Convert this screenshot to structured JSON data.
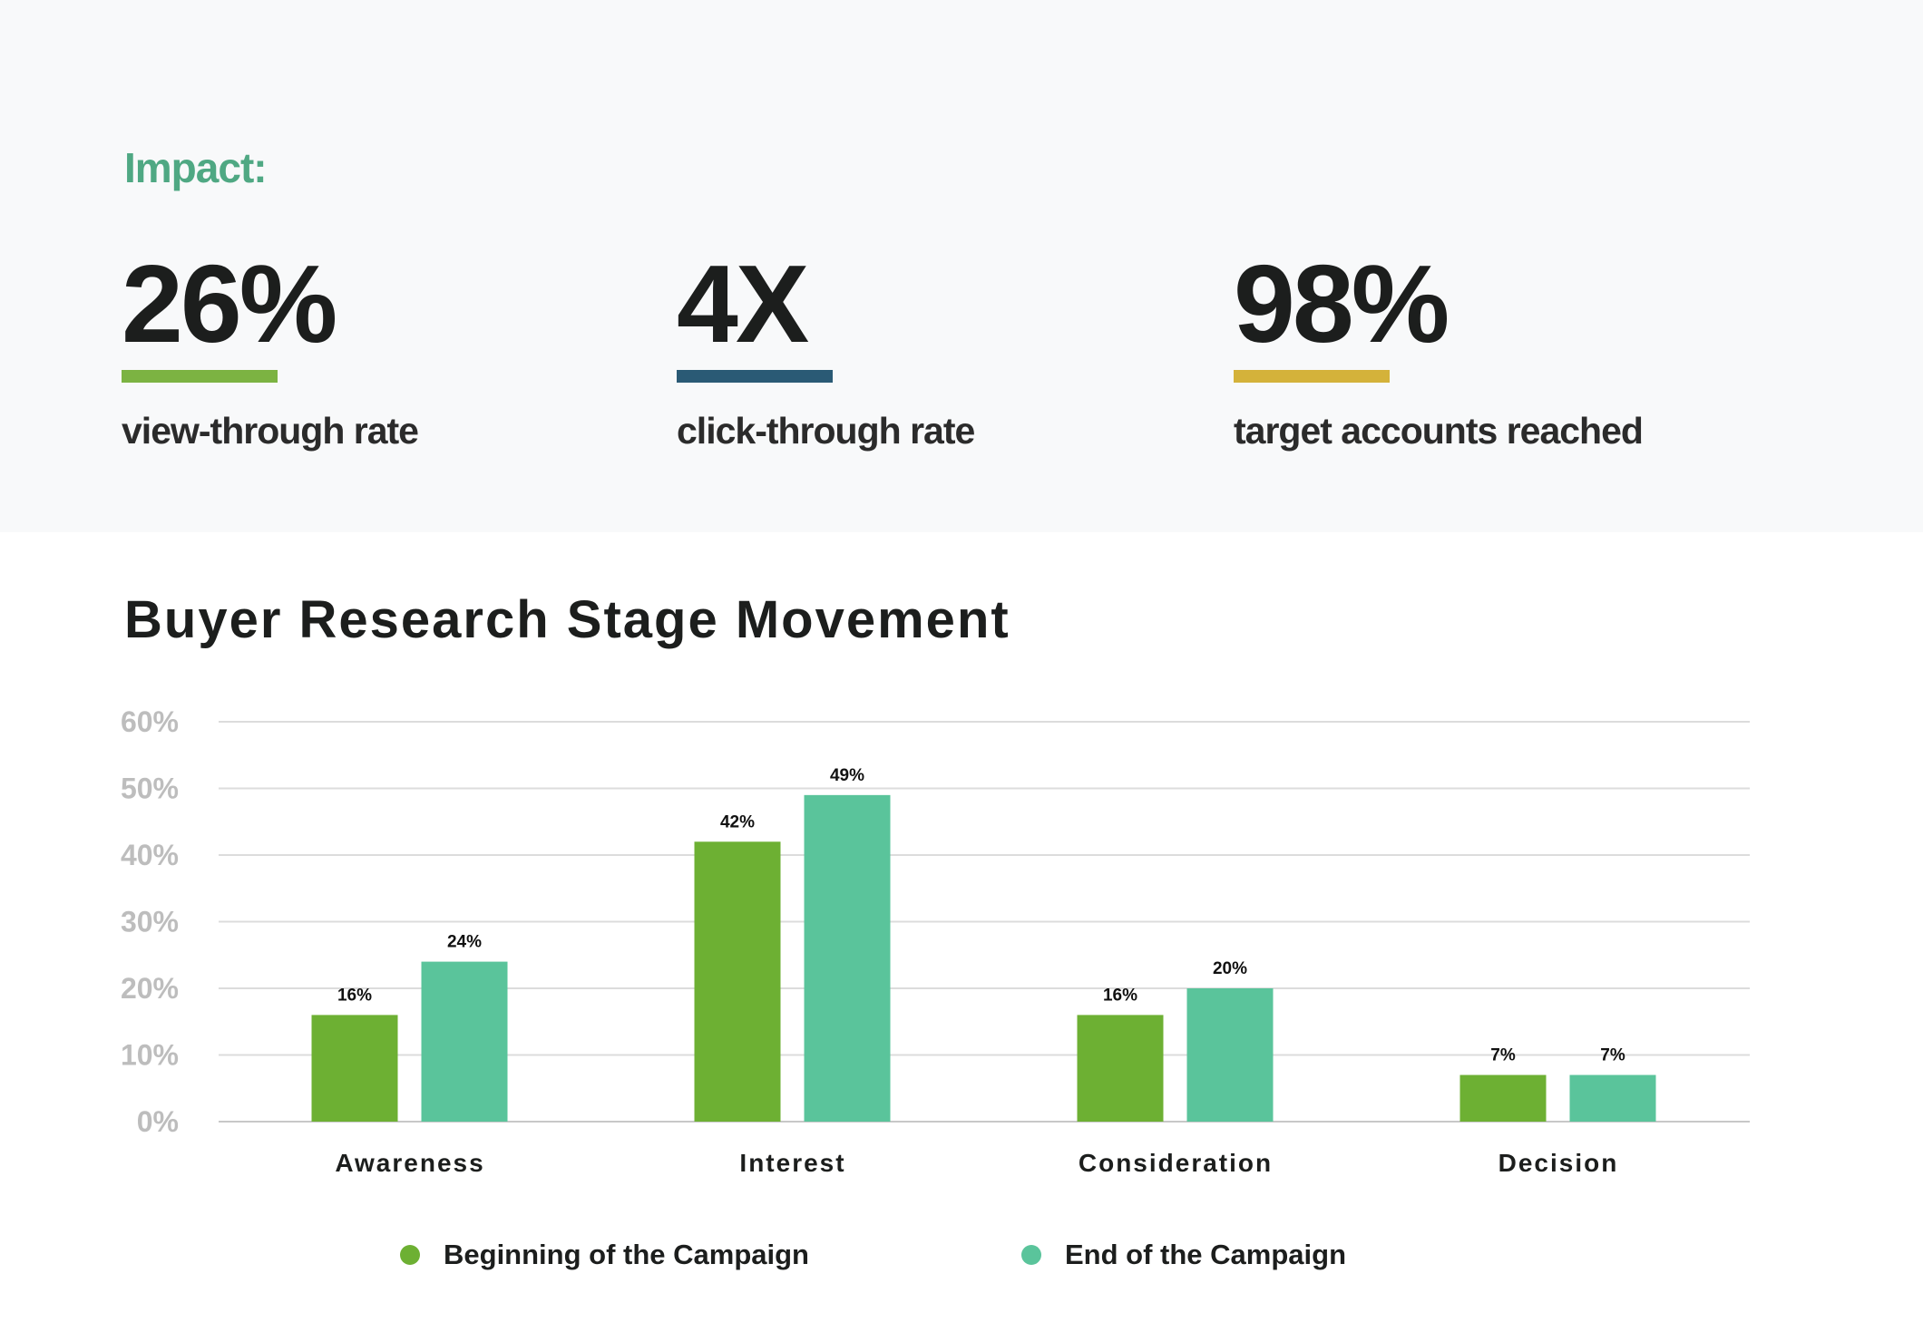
{
  "impact": {
    "heading": "Impact:",
    "stats": [
      {
        "value": "26%",
        "label": "view-through rate",
        "color": "#7cb342"
      },
      {
        "value": "4X",
        "label": "click-through rate",
        "color": "#2a5a75"
      },
      {
        "value": "98%",
        "label": "target accounts reached",
        "color": "#d4b23a"
      }
    ]
  },
  "chart_data": {
    "type": "bar",
    "title": "Buyer Research Stage Movement",
    "categories": [
      "Awareness",
      "Interest",
      "Consideration",
      "Decision"
    ],
    "series": [
      {
        "name": "Beginning of the Campaign",
        "values": [
          16,
          42,
          16,
          7
        ],
        "labels": [
          "16%",
          "42%",
          "16%",
          "7%"
        ],
        "color": "#6db033"
      },
      {
        "name": "End of the Campaign",
        "values": [
          24,
          49,
          20,
          7
        ],
        "labels": [
          "24%",
          "49%",
          "20%",
          "7%"
        ],
        "color": "#5ac49b"
      }
    ],
    "ylim": [
      0,
      60
    ],
    "yticks": [
      "0%",
      "10%",
      "20%",
      "30%",
      "40%",
      "50%",
      "60%"
    ],
    "grid": true,
    "legend": "bottom"
  }
}
